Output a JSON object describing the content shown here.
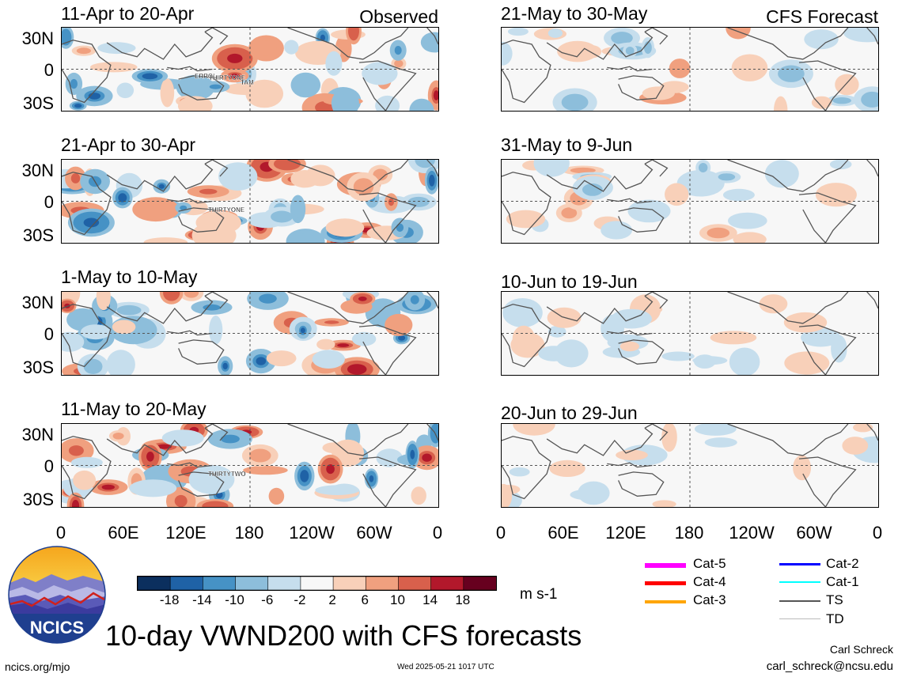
{
  "panels_left": [
    {
      "title": "11-Apr to 20-Apr",
      "tag": "Observed",
      "storms": [
        "ERROL",
        "THIRTYONE",
        "TAM"
      ]
    },
    {
      "title": "21-Apr to 30-Apr",
      "tag": "",
      "storms": [
        "THIRTYONE"
      ]
    },
    {
      "title": "1-May to 10-May",
      "tag": "",
      "storms": []
    },
    {
      "title": "11-May to 20-May",
      "tag": "",
      "storms": [
        "THIRTYTWO"
      ]
    }
  ],
  "panels_right": [
    {
      "title": "21-May to 30-May",
      "tag": "CFS Forecast"
    },
    {
      "title": "31-May to 9-Jun",
      "tag": ""
    },
    {
      "title": "10-Jun to 19-Jun",
      "tag": ""
    },
    {
      "title": "20-Jun to 29-Jun",
      "tag": ""
    }
  ],
  "lat_labels": [
    "30N",
    "0",
    "30S"
  ],
  "lon_labels": [
    "0",
    "60E",
    "120E",
    "180",
    "120W",
    "60W",
    "0"
  ],
  "colorbar": {
    "ticks": [
      "-18",
      "-14",
      "-10",
      "-6",
      "-2",
      "2",
      "6",
      "10",
      "14",
      "18"
    ],
    "colors": [
      "#0b2f5e",
      "#1f62a6",
      "#4692c5",
      "#8dbedb",
      "#c6deed",
      "#f7f7f7",
      "#f8d0b9",
      "#f0a07f",
      "#d8604c",
      "#b2182b",
      "#67001f"
    ],
    "units": "m s-1"
  },
  "storm_legend": [
    {
      "label": "Cat-5",
      "color": "#ff00ff"
    },
    {
      "label": "Cat-4",
      "color": "#ff0000"
    },
    {
      "label": "Cat-3",
      "color": "#ffa500"
    },
    {
      "label": "Cat-2",
      "color": "#0000ff"
    },
    {
      "label": "Cat-1",
      "color": "#00ffff"
    },
    {
      "label": "TS",
      "color": "#555555"
    },
    {
      "label": "TD",
      "color": "#bbbbbb"
    }
  ],
  "logo_text": "NCICS",
  "main_title": "10-day VWND200 with CFS forecasts",
  "author": "Carl Schreck",
  "email": "carl_schreck@ncsu.edu",
  "website": "ncics.org/mjo",
  "timestamp": "Wed 2025-05-21 1017 UTC"
}
